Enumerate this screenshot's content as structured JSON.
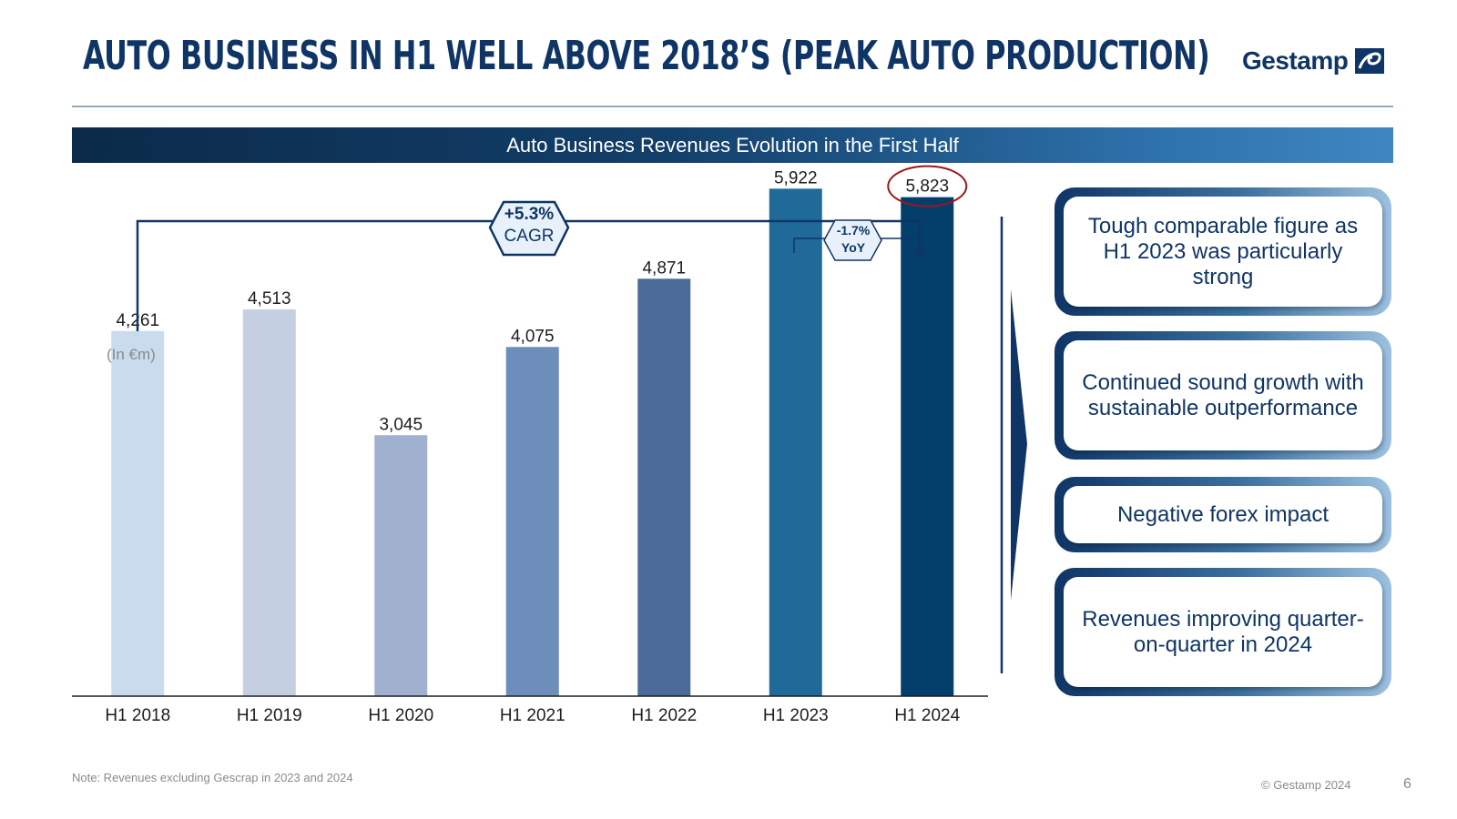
{
  "header": {
    "title": "Auto Business in H1 well above 2018’s (Peak auto production)",
    "logo_text": "Gestamp"
  },
  "section_title": "Auto Business Revenues Evolution in the First Half",
  "chart_data": {
    "type": "bar",
    "title": "Auto Business Revenues Evolution in the First Half",
    "unit_label": "(In €m)",
    "categories": [
      "H1 2018",
      "H1 2019",
      "H1 2020",
      "H1 2021",
      "H1 2022",
      "H1 2023",
      "H1 2024"
    ],
    "values": [
      4261,
      4513,
      3045,
      4075,
      4871,
      5922,
      5823
    ],
    "value_labels": [
      "4,261",
      "4,513",
      "3,045",
      "4,075",
      "4,871",
      "5,922",
      "5,823"
    ],
    "bar_colors": [
      "#c9dcee",
      "#c4d0e1",
      "#9fb1cf",
      "#6d8ebb",
      "#4a6b98",
      "#206a9a",
      "#043f6b"
    ],
    "ylim": [
      0,
      6000
    ],
    "grid": false,
    "legend": "none",
    "annotations": {
      "cagr": {
        "value": "+5.3%",
        "label": "CAGR",
        "from": "H1 2018",
        "to": "H1 2024"
      },
      "yoy": {
        "value": "-1.7%",
        "label": "YoY",
        "from": "H1 2023",
        "to": "H1 2024"
      },
      "highlight": "H1 2024"
    }
  },
  "callouts": [
    {
      "text": "Tough comparable figure as H1 2023 was particularly strong"
    },
    {
      "text": "Continued sound growth with sustainable outperformance"
    },
    {
      "text": "Negative forex impact"
    },
    {
      "text": "Revenues improving quarter-on-quarter in 2024"
    }
  ],
  "footer": {
    "note": "Note: Revenues excluding Gescrap in 2023 and 2024",
    "copyright": "© Gestamp 2024",
    "page_number": "6"
  },
  "colors": {
    "navy": "#0f3566",
    "highlight_circle": "#a0161b",
    "arrow": "#0f3566"
  }
}
